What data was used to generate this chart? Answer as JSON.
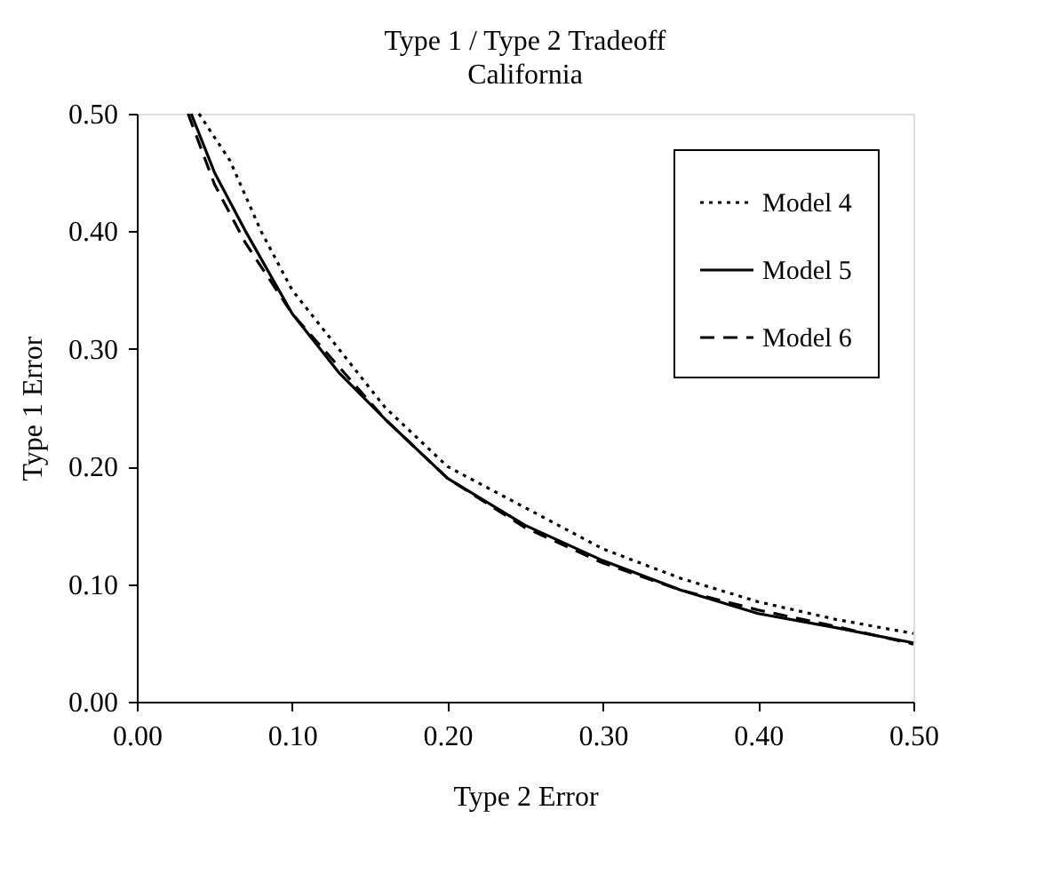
{
  "chart_data": {
    "type": "line",
    "title": "Type 1 / Type 2 Tradeoff",
    "subtitle": "California",
    "xlabel": "Type 2 Error",
    "ylabel": "Type 1 Error",
    "xlim": [
      0,
      0.5
    ],
    "xticks": [
      {
        "value": 0,
        "label": "0.00"
      },
      {
        "value": 0.1,
        "label": "0.10"
      },
      {
        "value": 0.2,
        "label": "0.20"
      },
      {
        "value": 0.3,
        "label": "0.30"
      },
      {
        "value": 0.4,
        "label": "0.40"
      },
      {
        "value": 0.5,
        "label": "0.50"
      }
    ],
    "ylim": [
      0,
      0.5
    ],
    "yticks": [
      {
        "value": 0,
        "label": "0.00"
      },
      {
        "value": 0.1,
        "label": "0.10"
      },
      {
        "value": 0.2,
        "label": "0.20"
      },
      {
        "value": 0.3,
        "label": "0.30"
      },
      {
        "value": 0.4,
        "label": "0.40"
      },
      {
        "value": 0.5,
        "label": "0.50"
      }
    ],
    "grid": false,
    "legend": "top right",
    "marker": "none",
    "series": [
      {
        "name": "Model 4",
        "color": "#000000",
        "line_style": "dotted",
        "x": [
          0.04,
          0.06,
          0.08,
          0.1,
          0.13,
          0.16,
          0.2,
          0.25,
          0.3,
          0.35,
          0.4,
          0.45,
          0.5
        ],
        "values": [
          0.5,
          0.46,
          0.4,
          0.35,
          0.3,
          0.25,
          0.2,
          0.165,
          0.13,
          0.105,
          0.085,
          0.07,
          0.058
        ]
      },
      {
        "name": "Model 5",
        "color": "#000000",
        "line_style": "solid",
        "x": [
          0.035,
          0.05,
          0.07,
          0.1,
          0.13,
          0.16,
          0.2,
          0.25,
          0.3,
          0.35,
          0.4,
          0.45,
          0.5
        ],
        "values": [
          0.5,
          0.45,
          0.4,
          0.33,
          0.28,
          0.24,
          0.19,
          0.15,
          0.12,
          0.095,
          0.075,
          0.063,
          0.05
        ]
      },
      {
        "name": "Model 6",
        "color": "#000000",
        "line_style": "dashed",
        "x": [
          0.033,
          0.05,
          0.07,
          0.1,
          0.13,
          0.16,
          0.2,
          0.25,
          0.3,
          0.35,
          0.4,
          0.45,
          0.5
        ],
        "values": [
          0.5,
          0.44,
          0.39,
          0.33,
          0.285,
          0.24,
          0.19,
          0.148,
          0.118,
          0.095,
          0.078,
          0.064,
          0.049
        ]
      }
    ]
  }
}
